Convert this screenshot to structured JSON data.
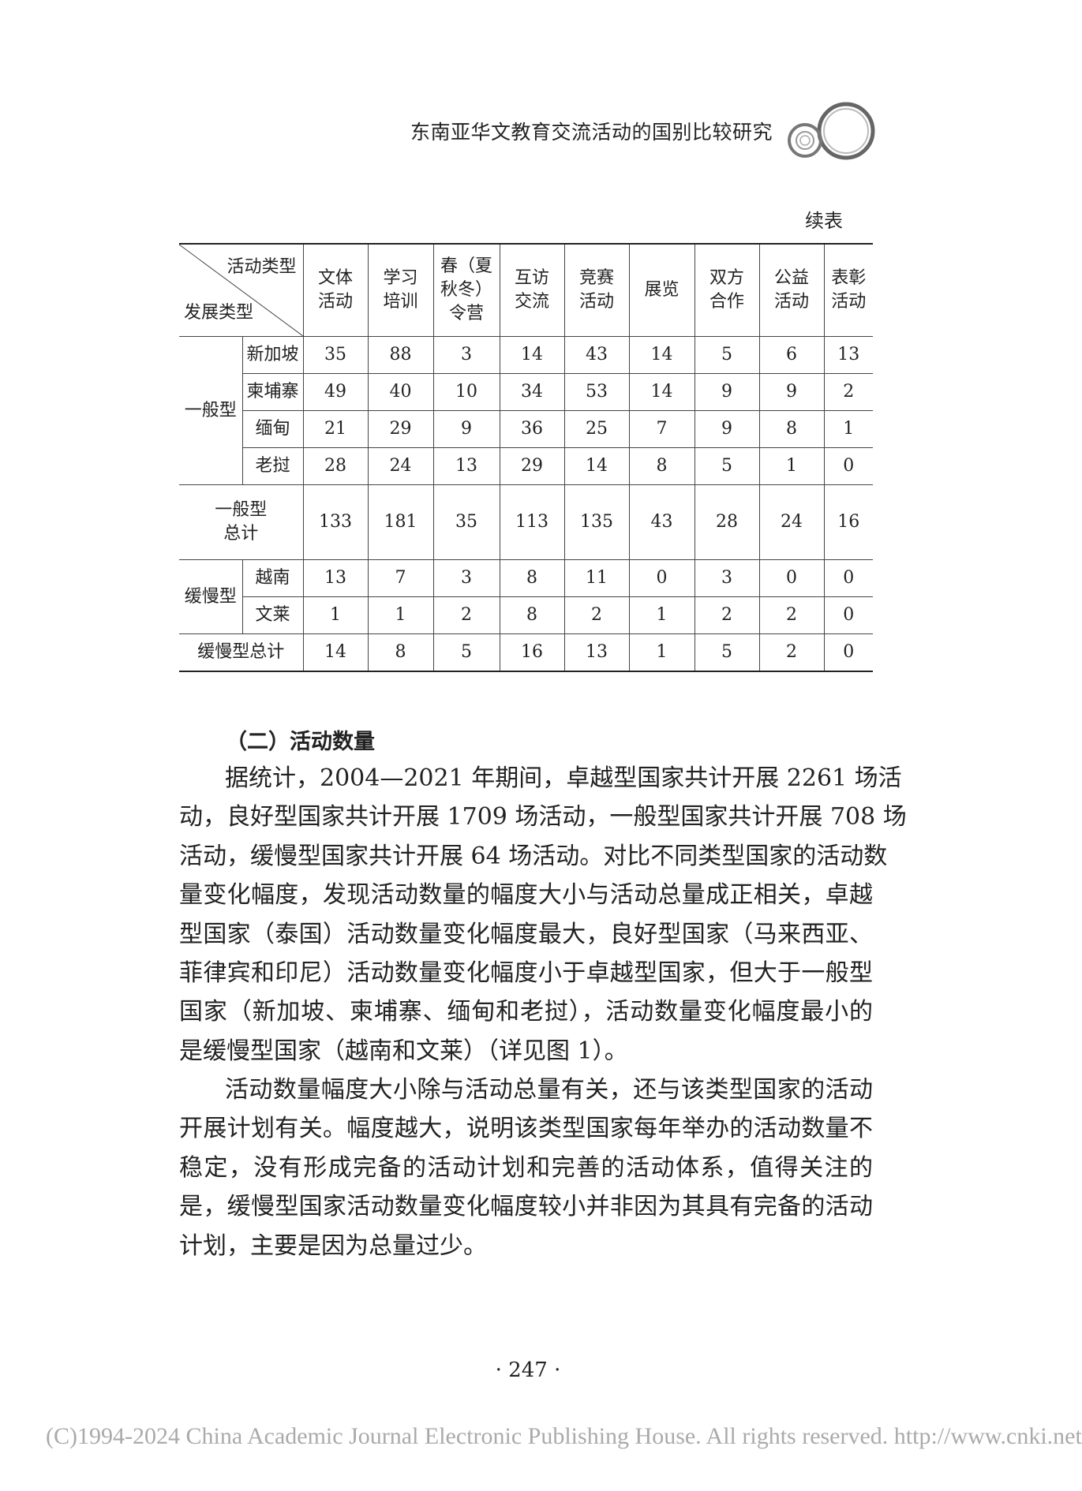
{
  "running_head": "东南亚华文教育交流活动的国别比较研究",
  "continued_label": "续表",
  "table": {
    "corner_top": "活动类型",
    "corner_bottom": "发展类型",
    "columns": [
      "文体活动",
      "学习培训",
      "春（夏秋冬）令营",
      "互访交流",
      "竞赛活动",
      "展览",
      "双方合作",
      "公益活动",
      "表彰活动"
    ],
    "column_lines": [
      [
        "文体",
        "活动"
      ],
      [
        "学习",
        "培训"
      ],
      [
        "春（夏",
        "秋冬）",
        "令营"
      ],
      [
        "互访",
        "交流"
      ],
      [
        "竞赛",
        "活动"
      ],
      [
        "展览"
      ],
      [
        "双方",
        "合作"
      ],
      [
        "公益",
        "活动"
      ],
      [
        "表彰",
        "活动"
      ]
    ],
    "group1": {
      "label": "一般型",
      "rows": [
        {
          "country": "新加坡",
          "values": [
            "35",
            "88",
            "3",
            "14",
            "43",
            "14",
            "5",
            "6",
            "13"
          ]
        },
        {
          "country": "柬埔寨",
          "values": [
            "49",
            "40",
            "10",
            "34",
            "53",
            "14",
            "9",
            "9",
            "2"
          ]
        },
        {
          "country": "缅甸",
          "values": [
            "21",
            "29",
            "9",
            "36",
            "25",
            "7",
            "9",
            "8",
            "1"
          ]
        },
        {
          "country": "老挝",
          "values": [
            "28",
            "24",
            "13",
            "29",
            "14",
            "8",
            "5",
            "1",
            "0"
          ]
        }
      ]
    },
    "total1": {
      "label_lines": [
        "一般型",
        "总计"
      ],
      "values": [
        "133",
        "181",
        "35",
        "113",
        "135",
        "43",
        "28",
        "24",
        "16"
      ]
    },
    "group2": {
      "label": "缓慢型",
      "rows": [
        {
          "country": "越南",
          "values": [
            "13",
            "7",
            "3",
            "8",
            "11",
            "0",
            "3",
            "0",
            "0"
          ]
        },
        {
          "country": "文莱",
          "values": [
            "1",
            "1",
            "2",
            "8",
            "2",
            "1",
            "2",
            "2",
            "0"
          ]
        }
      ]
    },
    "total2": {
      "label": "缓慢型总计",
      "values": [
        "14",
        "8",
        "5",
        "16",
        "13",
        "1",
        "5",
        "2",
        "0"
      ]
    }
  },
  "section_heading": "（二）活动数量",
  "paragraphs": [
    [
      "据统计，2004—2021 年期间，卓越型国家共计开展 2261 场活",
      "动，良好型国家共计开展 1709 场活动，一般型国家共计开展 708 场",
      "活动，缓慢型国家共计开展 64 场活动。对比不同类型国家的活动数",
      "量变化幅度，发现活动数量的幅度大小与活动总量成正相关，卓越",
      "型国家（泰国）活动数量变化幅度最大，良好型国家（马来西亚、",
      "菲律宾和印尼）活动数量变化幅度小于卓越型国家，但大于一般型",
      "国家（新加坡、柬埔寨、缅甸和老挝），活动数量变化幅度最小的",
      "是缓慢型国家（越南和文莱）（详见图 1）。"
    ],
    [
      "活动数量幅度大小除与活动总量有关，还与该类型国家的活动",
      "开展计划有关。幅度越大，说明该类型国家每年举办的活动数量不",
      "稳定，没有形成完备的活动计划和完善的活动体系，值得关注的",
      "是，缓慢型国家活动数量变化幅度较小并非因为其具有完备的活动",
      "计划，主要是因为总量过少。"
    ]
  ],
  "page_number": "· 247 ·",
  "footer": "(C)1994-2024 China Academic Journal Electronic Publishing House. All rights reserved.    http://www.cnki.net"
}
